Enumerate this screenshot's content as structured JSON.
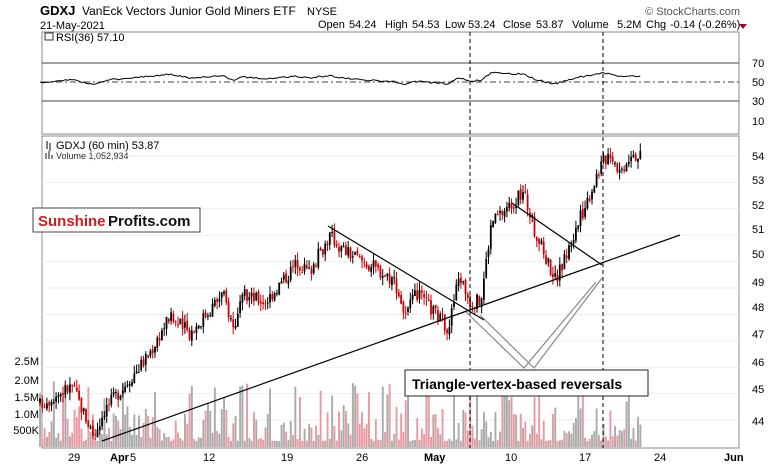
{
  "header": {
    "symbol": "GDXJ",
    "name": "VanEck Vectors Junior Gold Miners ETF",
    "exchange": "NYSE",
    "date": "21-May-2021",
    "watermark": "© StockCharts.com",
    "ohlc": {
      "open_label": "Open",
      "open": "54.24",
      "high_label": "High",
      "high": "54.53",
      "low_label": "Low",
      "low": "53.24",
      "close_label": "Close",
      "close": "53.87",
      "volume_label": "Volume",
      "volume": "5.2M",
      "chg_label": "Chg",
      "chg": "-0.14 (-0.26%)"
    }
  },
  "rsi_panel": {
    "label": "RSI(36) 57.10",
    "levels": [
      70,
      50,
      30
    ],
    "level_labels": [
      "70",
      "50",
      "30"
    ],
    "line_color": "#000000"
  },
  "price_panel": {
    "legend_price": "GDXJ (60 min) 53.87",
    "legend_volume": "Volume 1,052,934",
    "y_ticks": [
      "10",
      "54",
      "53",
      "52",
      "51",
      "50",
      "49",
      "48",
      "47",
      "46",
      "45",
      "44"
    ],
    "volume_ticks": [
      "2.5M",
      "2.0M",
      "1.5M",
      "1.0M",
      "500K"
    ],
    "up_color": "#000000",
    "down_color": "#cc0000",
    "volume_up_color": "#aaaaaa",
    "volume_down_color": "#e89aa0"
  },
  "x_axis": {
    "ticks": [
      "29",
      "Apr",
      "5",
      "12",
      "19",
      "26",
      "May",
      "10",
      "17",
      "24",
      "Jun"
    ]
  },
  "logo": {
    "part1": "Sunshine",
    "part2": "Profits.com",
    "part1_color": "#d11a1a",
    "part2_color": "#111111"
  },
  "annotation": {
    "text": "Triangle-vertex-based reversals"
  },
  "chart_data": {
    "type": "candlestick",
    "title": "GDXJ VanEck Vectors Junior Gold Miners ETF (60 min)",
    "date": "21-May-2021",
    "ylim": [
      43,
      55
    ],
    "last": {
      "open": 54.24,
      "high": 54.53,
      "low": 53.24,
      "close": 53.87,
      "volume": "5.2M",
      "chg": -0.14,
      "chg_pct": -0.26
    },
    "rsi": {
      "period": 36,
      "last": 57.1,
      "ylim": [
        10,
        90
      ],
      "levels": [
        70,
        50,
        30
      ]
    },
    "price_path": [
      [
        "2021-03-26",
        44.6
      ],
      [
        "2021-03-29",
        45.3
      ],
      [
        "2021-03-31",
        43.4
      ],
      [
        "2021-04-01",
        44.4
      ],
      [
        "2021-04-05",
        46.4
      ],
      [
        "2021-04-07",
        47.9
      ],
      [
        "2021-04-09",
        47.3
      ],
      [
        "2021-04-12",
        48.8
      ],
      [
        "2021-04-13",
        47.5
      ],
      [
        "2021-04-14",
        48.7
      ],
      [
        "2021-04-16",
        48.5
      ],
      [
        "2021-04-19",
        50.0
      ],
      [
        "2021-04-20",
        49.6
      ],
      [
        "2021-04-22",
        51.0
      ],
      [
        "2021-04-23",
        50.5
      ],
      [
        "2021-04-26",
        49.8
      ],
      [
        "2021-04-28",
        49.3
      ],
      [
        "2021-04-29",
        47.9
      ],
      [
        "2021-04-30",
        48.8
      ],
      [
        "2021-05-03",
        47.5
      ],
      [
        "2021-05-04",
        49.5
      ],
      [
        "2021-05-05",
        48.5
      ],
      [
        "2021-05-06",
        48.5
      ],
      [
        "2021-05-07",
        51.5
      ],
      [
        "2021-05-10",
        52.6
      ],
      [
        "2021-05-11",
        51.2
      ],
      [
        "2021-05-12",
        50.2
      ],
      [
        "2021-05-13",
        49.3
      ],
      [
        "2021-05-14",
        50.3
      ],
      [
        "2021-05-17",
        53.5
      ],
      [
        "2021-05-18",
        54.2
      ],
      [
        "2021-05-19",
        53.4
      ],
      [
        "2021-05-20",
        54.2
      ],
      [
        "2021-05-21",
        53.9
      ]
    ],
    "volume_range": [
      0,
      2500000
    ],
    "x_ticks": [
      "29",
      "Apr",
      "5",
      "12",
      "19",
      "26",
      "May",
      "10",
      "17",
      "24",
      "Jun"
    ],
    "annotations": [
      "Triangle-vertex-based reversals"
    ]
  }
}
